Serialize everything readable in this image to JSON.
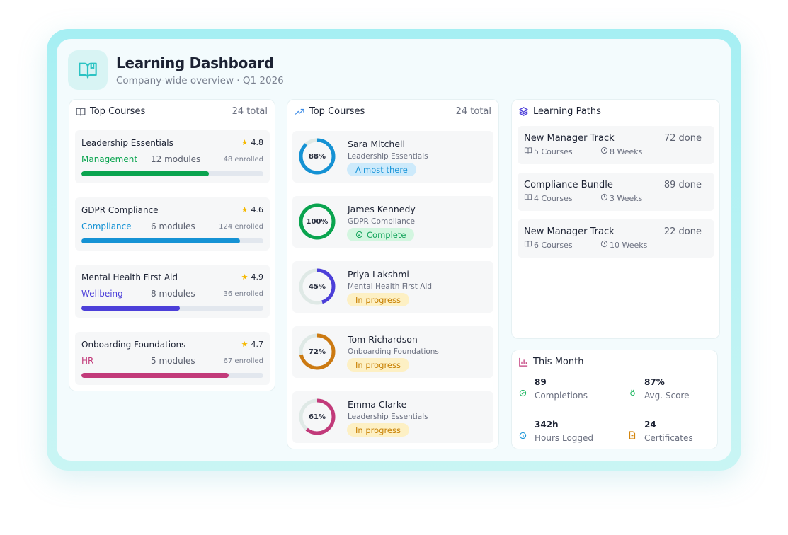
{
  "header": {
    "title": "Learning Dashboard",
    "subtitle": "Company-wide overview · Q1 2026",
    "icon": "book-open-icon"
  },
  "courses_panel": {
    "title": "Top Courses",
    "total": "24 total",
    "items": [
      {
        "name": "Leadership Essentials",
        "rating": "4.8",
        "category": "Management",
        "modules": "12 modules",
        "enrolled": "48 enrolled",
        "progress": 70,
        "color": "#0aa44f"
      },
      {
        "name": "GDPR Compliance",
        "rating": "4.6",
        "category": "Compliance",
        "modules": "6 modules",
        "enrolled": "124 enrolled",
        "progress": 87,
        "color": "#1592d4"
      },
      {
        "name": "Mental Health First Aid",
        "rating": "4.9",
        "category": "Wellbeing",
        "modules": "8 modules",
        "enrolled": "36 enrolled",
        "progress": 54,
        "color": "#4c3fd9"
      },
      {
        "name": "Onboarding Foundations",
        "rating": "4.7",
        "category": "HR",
        "modules": "5 modules",
        "enrolled": "67 enrolled",
        "progress": 81,
        "color": "#c23a7a"
      }
    ]
  },
  "learners_panel": {
    "title": "Top Courses",
    "total": "24 total",
    "items": [
      {
        "name": "Sara Mitchell",
        "course": "Leadership Essentials",
        "percent": "88%",
        "value": 88,
        "status": "Almost there",
        "color": "#1592d4",
        "badge_bg": "#cdeafb",
        "badge_fg": "#1a95d8"
      },
      {
        "name": "James Kennedy",
        "course": "GDPR Compliance",
        "percent": "100%",
        "value": 100,
        "status": "Complete",
        "color": "#0aa44f",
        "badge_bg": "#d3f6e0",
        "badge_fg": "#12a35a"
      },
      {
        "name": "Priya Lakshmi",
        "course": "Mental Health First Aid",
        "percent": "45%",
        "value": 45,
        "status": "In progress",
        "color": "#4c3fd9",
        "badge_bg": "#fdf0c4",
        "badge_fg": "#c77f00"
      },
      {
        "name": "Tom Richardson",
        "course": "Onboarding Foundations",
        "percent": "72%",
        "value": 72,
        "status": "In progress",
        "color": "#cc7a12",
        "badge_bg": "#fdf0c4",
        "badge_fg": "#c77f00"
      },
      {
        "name": "Emma Clarke",
        "course": "Leadership Essentials",
        "percent": "61%",
        "value": 61,
        "status": "In progress",
        "color": "#c23a7a",
        "badge_bg": "#fdf0c4",
        "badge_fg": "#c77f00"
      }
    ]
  },
  "paths_panel": {
    "title": "Learning Paths",
    "items": [
      {
        "name": "New Manager Track",
        "done": "72 done",
        "courses": "5 Courses",
        "weeks": "8 Weeks"
      },
      {
        "name": "Compliance Bundle",
        "done": "89 done",
        "courses": "4 Courses",
        "weeks": "3 Weeks"
      },
      {
        "name": "New Manager Track",
        "done": "22 done",
        "courses": "6 Courses",
        "weeks": "10 Weeks"
      }
    ]
  },
  "month_panel": {
    "title": "This Month",
    "stats": [
      {
        "value": "89",
        "label": "Completions",
        "icon": "check-circle-icon",
        "color": "#22b864"
      },
      {
        "value": "87%",
        "label": "Avg. Score",
        "icon": "medal-icon",
        "color": "#22b864"
      },
      {
        "value": "342h",
        "label": "Hours Logged",
        "icon": "clock-icon",
        "color": "#1a95d8"
      },
      {
        "value": "24",
        "label": "Certificates",
        "icon": "certificate-icon",
        "color": "#d4860f"
      }
    ]
  }
}
